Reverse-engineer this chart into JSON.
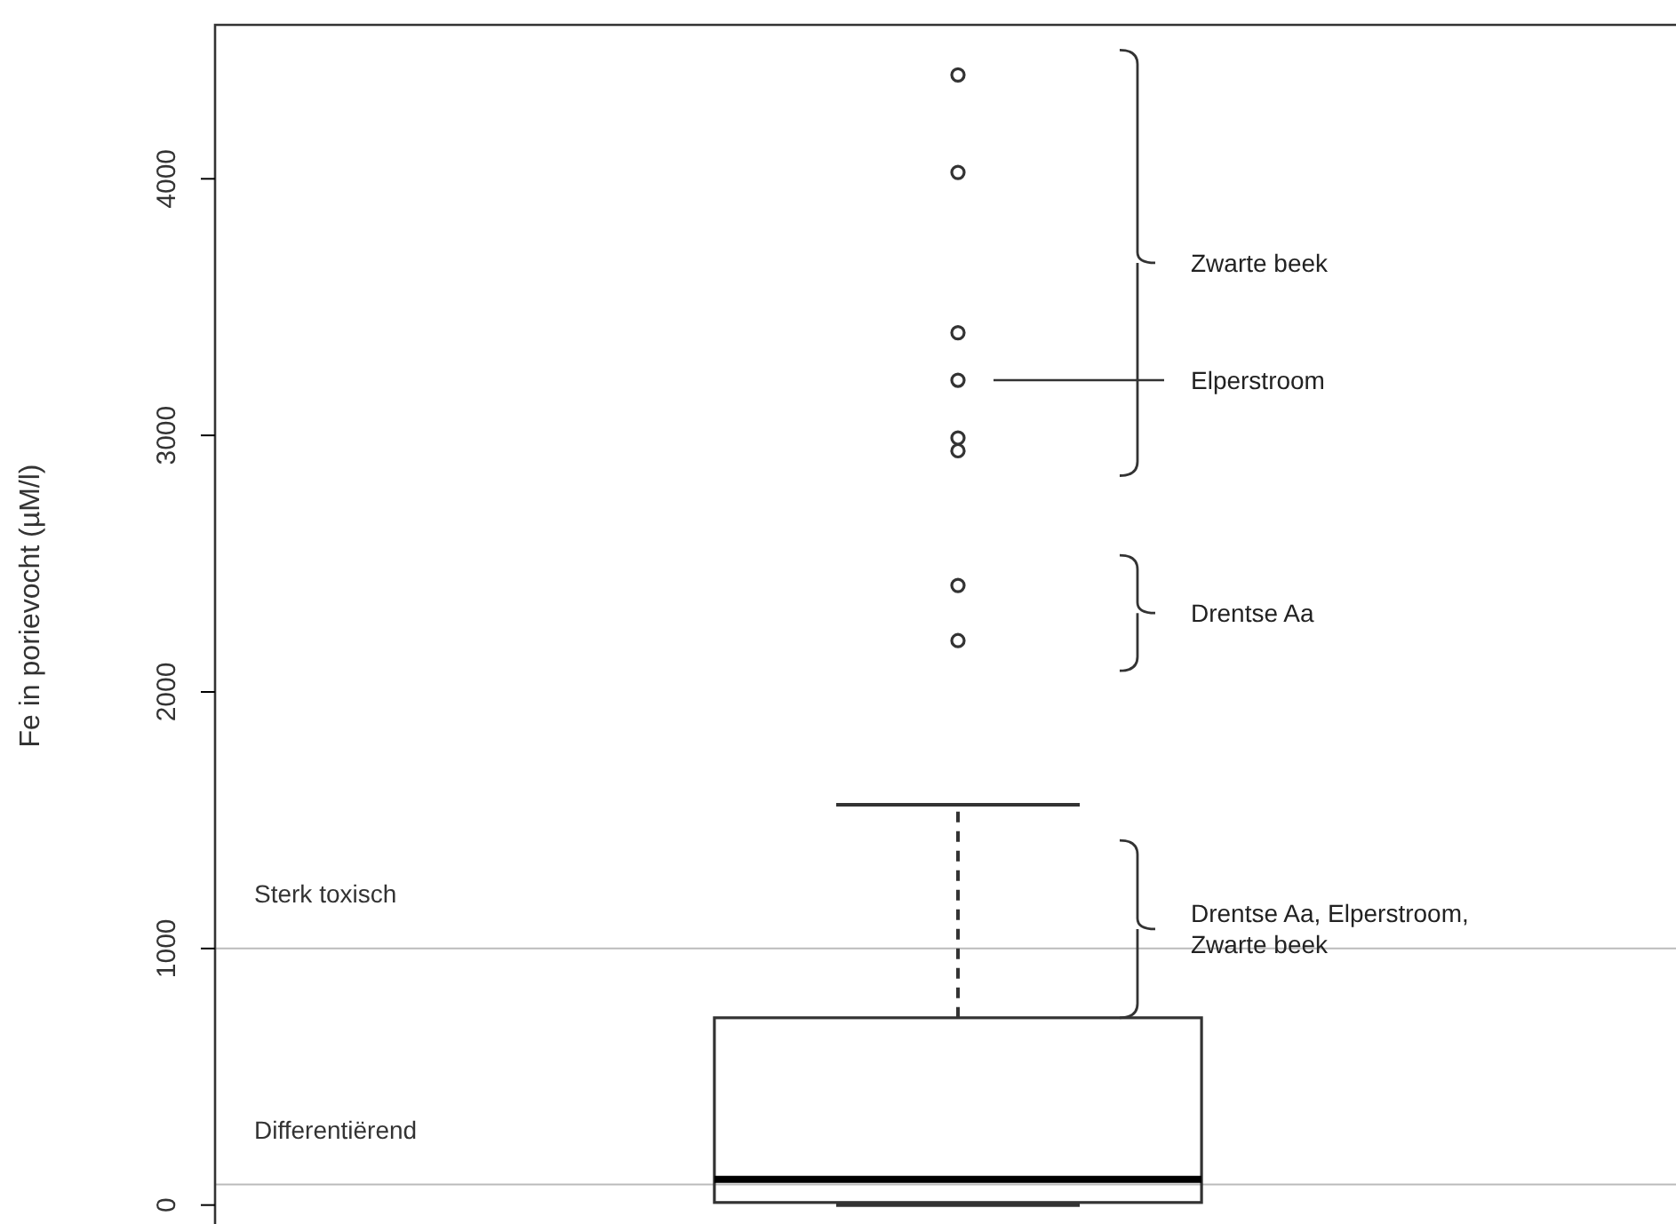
{
  "chart_data": {
    "type": "box",
    "ylabel": "Fe in porievocht (µM/l)",
    "categories": [
      null
    ],
    "boxes": [
      {
        "low": 0,
        "q1": 10,
        "median": 100,
        "q3": 730,
        "high": 1560,
        "outliers": [
          4405,
          4025,
          3400,
          3215,
          2990,
          2940,
          2415,
          2200
        ]
      }
    ],
    "ylim": [
      -150,
      4600
    ],
    "yticks": [
      0,
      1000,
      2000,
      3000,
      4000
    ],
    "ref_lines": [
      {
        "axis": "y",
        "value": 1000,
        "label": "Sterk toxisch",
        "color": "#bbbbbb"
      },
      {
        "axis": "y",
        "value": 80,
        "label": "Differentiërend",
        "color": "#bbbbbb"
      }
    ],
    "annotations": [
      "Zwarte beek",
      "Elperstroom",
      "Drentse Aa",
      "Drentse Aa, Elperstroom, Zwarte beek"
    ]
  }
}
